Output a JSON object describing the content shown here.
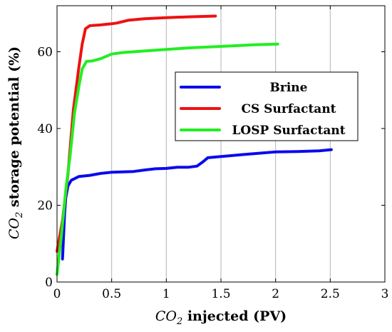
{
  "chart_data": {
    "type": "line",
    "title": "",
    "xlabel_var": "CO",
    "xlabel_sub": "2",
    "xlabel_rest": " injected (PV)",
    "ylabel_var": "CO",
    "ylabel_sub": "2",
    "ylabel_rest": " storage potential (%)",
    "xlim": [
      0,
      3
    ],
    "ylim": [
      0,
      72
    ],
    "x_ticks": [
      0,
      0.5,
      1,
      1.5,
      2,
      2.5,
      3
    ],
    "x_tick_labels": [
      "0",
      "0.5",
      "1",
      "1.5",
      "2",
      "2.5",
      "3"
    ],
    "y_ticks": [
      0,
      20,
      40,
      60
    ],
    "y_tick_labels": [
      "0",
      "20",
      "40",
      "60"
    ],
    "grid": "vertical",
    "legend_position": "center-right",
    "series": [
      {
        "name": "Brine",
        "color": "#0a0aee",
        "points": [
          [
            0.05,
            6
          ],
          [
            0.06,
            12
          ],
          [
            0.07,
            18
          ],
          [
            0.08,
            22
          ],
          [
            0.1,
            25
          ],
          [
            0.13,
            26.5
          ],
          [
            0.2,
            27.5
          ],
          [
            0.3,
            27.8
          ],
          [
            0.4,
            28.3
          ],
          [
            0.5,
            28.6
          ],
          [
            0.6,
            28.7
          ],
          [
            0.7,
            28.8
          ],
          [
            0.8,
            29.2
          ],
          [
            0.9,
            29.5
          ],
          [
            1.0,
            29.6
          ],
          [
            1.1,
            29.9
          ],
          [
            1.2,
            29.9
          ],
          [
            1.28,
            30.2
          ],
          [
            1.33,
            31.2
          ],
          [
            1.38,
            32.4
          ],
          [
            1.5,
            32.7
          ],
          [
            1.7,
            33.2
          ],
          [
            2.0,
            33.9
          ],
          [
            2.2,
            34.0
          ],
          [
            2.4,
            34.2
          ],
          [
            2.51,
            34.5
          ]
        ]
      },
      {
        "name": "CS Surfactant",
        "color": "#ee1111",
        "points": [
          [
            0.0,
            8
          ],
          [
            0.05,
            16
          ],
          [
            0.1,
            28
          ],
          [
            0.15,
            45
          ],
          [
            0.2,
            56
          ],
          [
            0.23,
            62
          ],
          [
            0.26,
            66
          ],
          [
            0.3,
            66.8
          ],
          [
            0.4,
            67.0
          ],
          [
            0.5,
            67.3
          ],
          [
            0.55,
            67.5
          ],
          [
            0.65,
            68.2
          ],
          [
            0.8,
            68.6
          ],
          [
            1.0,
            68.9
          ],
          [
            1.2,
            69.1
          ],
          [
            1.45,
            69.3
          ]
        ]
      },
      {
        "name": "LOSP Surfactant",
        "color": "#22ee22",
        "points": [
          [
            0.0,
            2
          ],
          [
            0.04,
            12
          ],
          [
            0.08,
            24
          ],
          [
            0.12,
            33
          ],
          [
            0.16,
            44
          ],
          [
            0.2,
            51
          ],
          [
            0.23,
            55.5
          ],
          [
            0.27,
            57.5
          ],
          [
            0.32,
            57.6
          ],
          [
            0.4,
            58.2
          ],
          [
            0.5,
            59.4
          ],
          [
            0.6,
            59.8
          ],
          [
            0.8,
            60.2
          ],
          [
            1.0,
            60.6
          ],
          [
            1.2,
            61.0
          ],
          [
            1.5,
            61.4
          ],
          [
            1.8,
            61.8
          ],
          [
            2.02,
            62.0
          ]
        ]
      }
    ]
  }
}
